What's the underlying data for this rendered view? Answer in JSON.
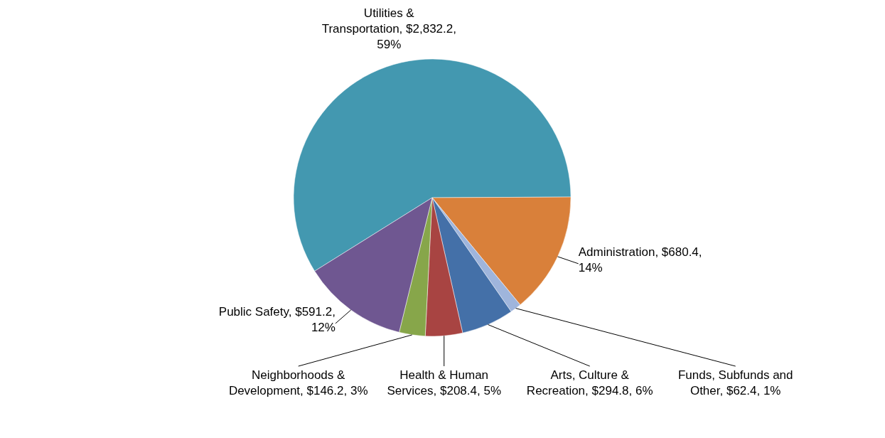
{
  "chart_data": {
    "type": "pie",
    "categories": [
      "Utilities & Transportation",
      "Administration",
      "Funds, Subfunds and Other",
      "Arts, Culture & Recreation",
      "Health & Human Services",
      "Neighborhoods & Development",
      "Public Safety"
    ],
    "values": [
      2832.2,
      680.4,
      62.4,
      294.8,
      208.4,
      146.2,
      591.2
    ],
    "value_labels": [
      "$2,832.2, 59%",
      "$680.4, 14%",
      "$62.4, 1%",
      "$294.8, 6%",
      "$208.4, 5%",
      "$146.2, 3%",
      "$591.2, 12%"
    ],
    "colors": [
      "#4398b0",
      "#d9803a",
      "#9fb5dc",
      "#4470a8",
      "#a84442",
      "#87a64a",
      "#6f5791"
    ]
  }
}
